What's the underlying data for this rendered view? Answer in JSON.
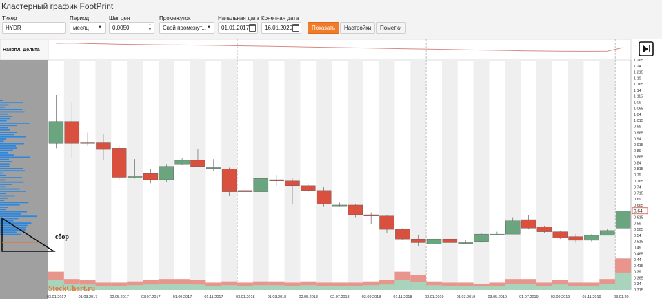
{
  "page": {
    "title": "Кластерный график FootPrint"
  },
  "form": {
    "ticker": {
      "label": "Тикер",
      "value": "HYDR"
    },
    "period": {
      "label": "Период",
      "value": "месяц"
    },
    "step": {
      "label": "Шаг цен",
      "value": "0.0050"
    },
    "range": {
      "label": "Промежуток",
      "value": "Свой промежут..."
    },
    "start": {
      "label": "Начальная дата",
      "value": "01.01.2017"
    },
    "end": {
      "label": "Конечная дата",
      "value": "16.01.2020"
    },
    "buttons": {
      "show": "Показать",
      "settings": "Настройки",
      "notes": "Пометки"
    }
  },
  "panel": {
    "delta_label": "Накопл. Дельта",
    "annotation": "сбор",
    "brand": "StockChart.ru"
  },
  "colors": {
    "up": "#6aa57f",
    "down": "#d9503f",
    "delta_line": "#d88a84",
    "vol_down": "#e8958d",
    "vol_up": "#a9d4bc",
    "profile": "#2b87e0",
    "sidebar_bg": "#a0a0a0"
  },
  "chart_data": {
    "type": "candlestick",
    "title": "",
    "ylim": [
      0.315,
      1.265
    ],
    "y_ticks": [
      "1.265",
      "1.24",
      "1.215",
      "1.19",
      "1.165",
      "1.14",
      "1.115",
      "1.09",
      "1.065",
      "1.04",
      "1.015",
      "0.99",
      "0.965",
      "0.94",
      "0.915",
      "0.89",
      "0.865",
      "0.84",
      "0.815",
      "0.79",
      "0.765",
      "0.74",
      "0.715",
      "0.69",
      "0.665",
      "0.64",
      "0.615",
      "0.59",
      "0.565",
      "0.54",
      "0.515",
      "0.49",
      "0.465",
      "0.44",
      "0.415",
      "0.39",
      "0.365",
      "0.34",
      "0.315"
    ],
    "x_labels": [
      "03.01.2017",
      "01.03.2017",
      "02.05.2017",
      "03.07.2017",
      "01.09.2017",
      "01.11.2017",
      "03.01.2018",
      "01.03.2018",
      "02.05.2018",
      "02.07.2018",
      "03.09.2018",
      "01.11.2018",
      "03.01.2019",
      "01.03.2019",
      "03.05.2019",
      "01.07.2019",
      "02.09.2019",
      "01.11.2019",
      "03.01.20"
    ],
    "last_price": "0.64",
    "candles": [
      {
        "o": 0.92,
        "c": 1.01,
        "h": 1.12,
        "l": 0.9
      },
      {
        "o": 1.01,
        "c": 0.92,
        "h": 1.09,
        "l": 0.86
      },
      {
        "o": 0.925,
        "c": 0.92,
        "h": 0.965,
        "l": 0.91
      },
      {
        "o": 0.925,
        "c": 0.895,
        "h": 0.96,
        "l": 0.85
      },
      {
        "o": 0.9,
        "c": 0.78,
        "h": 0.915,
        "l": 0.77
      },
      {
        "o": 0.78,
        "c": 0.785,
        "h": 0.855,
        "l": 0.775
      },
      {
        "o": 0.795,
        "c": 0.77,
        "h": 0.815,
        "l": 0.755
      },
      {
        "o": 0.77,
        "c": 0.825,
        "h": 0.835,
        "l": 0.76
      },
      {
        "o": 0.835,
        "c": 0.85,
        "h": 0.86,
        "l": 0.83
      },
      {
        "o": 0.85,
        "c": 0.825,
        "h": 0.895,
        "l": 0.825
      },
      {
        "o": 0.82,
        "c": 0.82,
        "h": 0.855,
        "l": 0.805
      },
      {
        "o": 0.815,
        "c": 0.72,
        "h": 0.82,
        "l": 0.705
      },
      {
        "o": 0.725,
        "c": 0.72,
        "h": 0.775,
        "l": 0.71
      },
      {
        "o": 0.72,
        "c": 0.775,
        "h": 0.79,
        "l": 0.71
      },
      {
        "o": 0.77,
        "c": 0.765,
        "h": 0.79,
        "l": 0.745
      },
      {
        "o": 0.765,
        "c": 0.745,
        "h": 0.775,
        "l": 0.67
      },
      {
        "o": 0.745,
        "c": 0.725,
        "h": 0.755,
        "l": 0.72
      },
      {
        "o": 0.725,
        "c": 0.67,
        "h": 0.74,
        "l": 0.66
      },
      {
        "o": 0.665,
        "c": 0.665,
        "h": 0.675,
        "l": 0.66
      },
      {
        "o": 0.665,
        "c": 0.625,
        "h": 0.67,
        "l": 0.615
      },
      {
        "o": 0.625,
        "c": 0.62,
        "h": 0.635,
        "l": 0.585
      },
      {
        "o": 0.62,
        "c": 0.565,
        "h": 0.625,
        "l": 0.55
      },
      {
        "o": 0.565,
        "c": 0.525,
        "h": 0.57,
        "l": 0.52
      },
      {
        "o": 0.525,
        "c": 0.51,
        "h": 0.54,
        "l": 0.495
      },
      {
        "o": 0.505,
        "c": 0.525,
        "h": 0.54,
        "l": 0.495
      },
      {
        "o": 0.525,
        "c": 0.51,
        "h": 0.53,
        "l": 0.505
      },
      {
        "o": 0.51,
        "c": 0.51,
        "h": 0.52,
        "l": 0.505
      },
      {
        "o": 0.515,
        "c": 0.545,
        "h": 0.55,
        "l": 0.51
      },
      {
        "o": 0.545,
        "c": 0.545,
        "h": 0.555,
        "l": 0.54
      },
      {
        "o": 0.545,
        "c": 0.6,
        "h": 0.615,
        "l": 0.545
      },
      {
        "o": 0.605,
        "c": 0.57,
        "h": 0.625,
        "l": 0.565
      },
      {
        "o": 0.575,
        "c": 0.555,
        "h": 0.58,
        "l": 0.55
      },
      {
        "o": 0.555,
        "c": 0.53,
        "h": 0.56,
        "l": 0.525
      },
      {
        "o": 0.535,
        "c": 0.52,
        "h": 0.545,
        "l": 0.51
      },
      {
        "o": 0.52,
        "c": 0.54,
        "h": 0.545,
        "l": 0.515
      },
      {
        "o": 0.54,
        "c": 0.56,
        "h": 0.565,
        "l": 0.54
      },
      {
        "o": 0.57,
        "c": 0.64,
        "h": 0.71,
        "l": 0.565
      }
    ],
    "volumes": [
      0.39,
      0.36,
      0.355,
      0.345,
      0.345,
      0.35,
      0.355,
      0.36,
      0.36,
      0.355,
      0.345,
      0.35,
      0.345,
      0.35,
      0.35,
      0.345,
      0.35,
      0.345,
      0.345,
      0.345,
      0.35,
      0.355,
      0.39,
      0.375,
      0.35,
      0.345,
      0.345,
      0.34,
      0.345,
      0.36,
      0.36,
      0.345,
      0.355,
      0.345,
      0.345,
      0.36,
      0.445
    ],
    "delta_line": [
      0.9,
      0.92,
      0.88,
      0.86,
      0.83,
      0.82,
      0.8,
      0.79,
      0.78,
      0.77,
      0.755,
      0.74,
      0.72,
      0.7,
      0.68,
      0.66,
      0.64,
      0.62,
      0.6,
      0.58,
      0.56,
      0.54,
      0.52,
      0.5,
      0.48,
      0.46,
      0.44,
      0.42,
      0.4,
      0.38,
      0.36,
      0.35,
      0.34,
      0.33,
      0.33,
      0.34,
      0.6
    ]
  }
}
